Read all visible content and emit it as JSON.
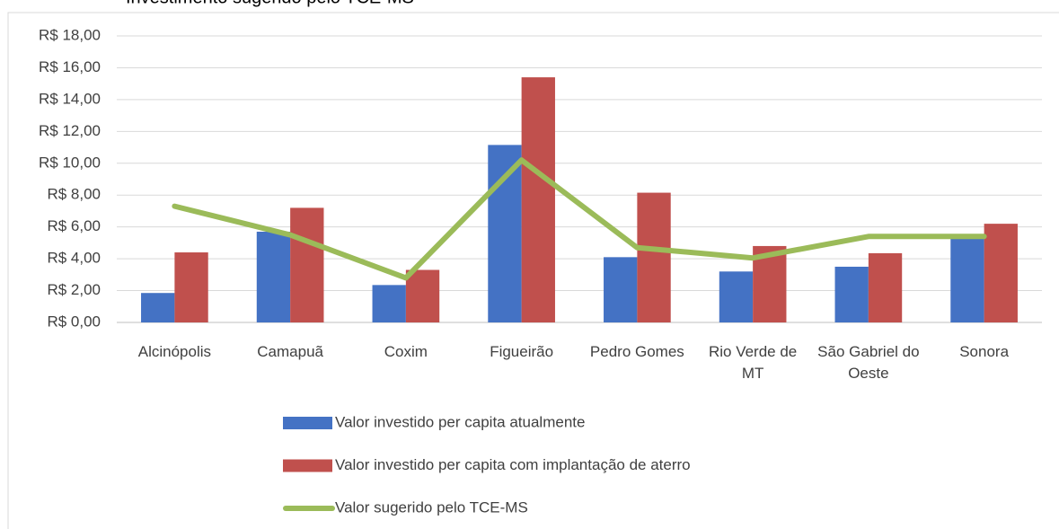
{
  "chart_data": {
    "type": "bar",
    "title": "Investimento sugerido pelo TCE-MS",
    "categories": [
      "Alcinópolis",
      "Camapuã",
      "Coxim",
      "Figueirão",
      "Pedro Gomes",
      "Rio Verde de MT",
      "São Gabriel do Oeste",
      "Sonora"
    ],
    "series": [
      {
        "name": "Valor investido per capita atualmente",
        "type": "bar",
        "color": "#4472c4",
        "values": [
          1.85,
          5.7,
          2.35,
          11.15,
          4.1,
          3.2,
          3.5,
          5.3
        ]
      },
      {
        "name": "Valor investido per capita com implantação de aterro",
        "type": "bar",
        "color": "#c0504d",
        "values": [
          4.4,
          7.2,
          3.3,
          15.4,
          8.15,
          4.8,
          4.35,
          6.2
        ]
      },
      {
        "name": "Valor sugerido pelo TCE-MS",
        "type": "line",
        "color": "#9bbb59",
        "values": [
          7.3,
          5.5,
          2.8,
          10.2,
          4.7,
          4.05,
          5.4,
          5.4
        ]
      }
    ],
    "ylim": [
      0,
      18
    ],
    "yticks": [
      {
        "value": 0,
        "label": "R$ 0,00"
      },
      {
        "value": 2,
        "label": "R$ 2,00"
      },
      {
        "value": 4,
        "label": "R$ 4,00"
      },
      {
        "value": 6,
        "label": "R$ 6,00"
      },
      {
        "value": 8,
        "label": "R$ 8,00"
      },
      {
        "value": 10,
        "label": "R$ 10,00"
      },
      {
        "value": 12,
        "label": "R$ 12,00"
      },
      {
        "value": 14,
        "label": "R$ 14,00"
      },
      {
        "value": 16,
        "label": "R$ 16,00"
      },
      {
        "value": 18,
        "label": "R$ 18,00"
      }
    ],
    "grid": true
  }
}
